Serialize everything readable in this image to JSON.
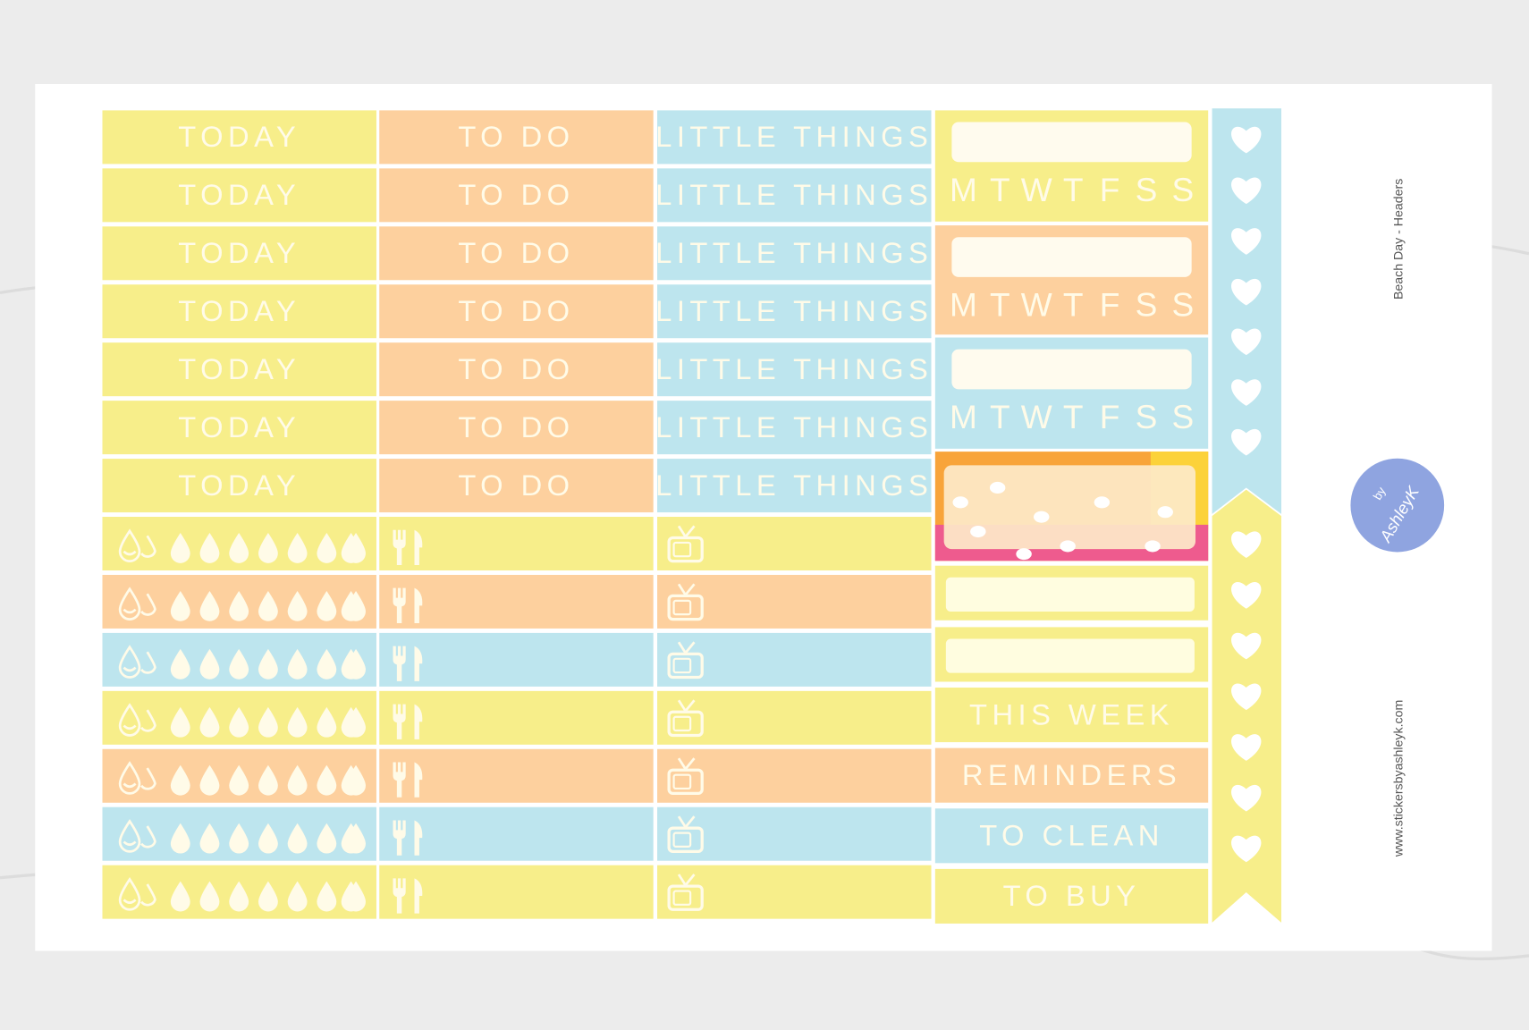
{
  "sheet_title": "Beach Day - Headers",
  "website": "www.stickersbyashleyk.com",
  "logo": {
    "by": "by",
    "name": "AshleyK"
  },
  "header_columns": [
    {
      "rows": [
        "TODAY",
        "TODAY",
        "TODAY",
        "TODAY",
        "TODAY",
        "TODAY",
        "TODAY"
      ]
    },
    {
      "rows": [
        "TO DO",
        "TO DO",
        "TO DO",
        "TO DO",
        "TO DO",
        "TO DO",
        "TO DO"
      ]
    },
    {
      "rows": [
        "LITTLE THINGS",
        "LITTLE THINGS",
        "LITTLE THINGS",
        "LITTLE THINGS",
        "LITTLE THINGS",
        "LITTLE THINGS",
        "LITTLE THINGS"
      ]
    }
  ],
  "week_strips": [
    {
      "days": [
        "M",
        "T",
        "W",
        "T",
        "F",
        "S",
        "S"
      ]
    },
    {
      "days": [
        "M",
        "T",
        "W",
        "T",
        "F",
        "S",
        "S"
      ]
    },
    {
      "days": [
        "M",
        "T",
        "W",
        "T",
        "F",
        "S",
        "S"
      ]
    }
  ],
  "labels": [
    "THIS WEEK",
    "REMINDERS",
    "TO CLEAN",
    "TO BUY"
  ]
}
